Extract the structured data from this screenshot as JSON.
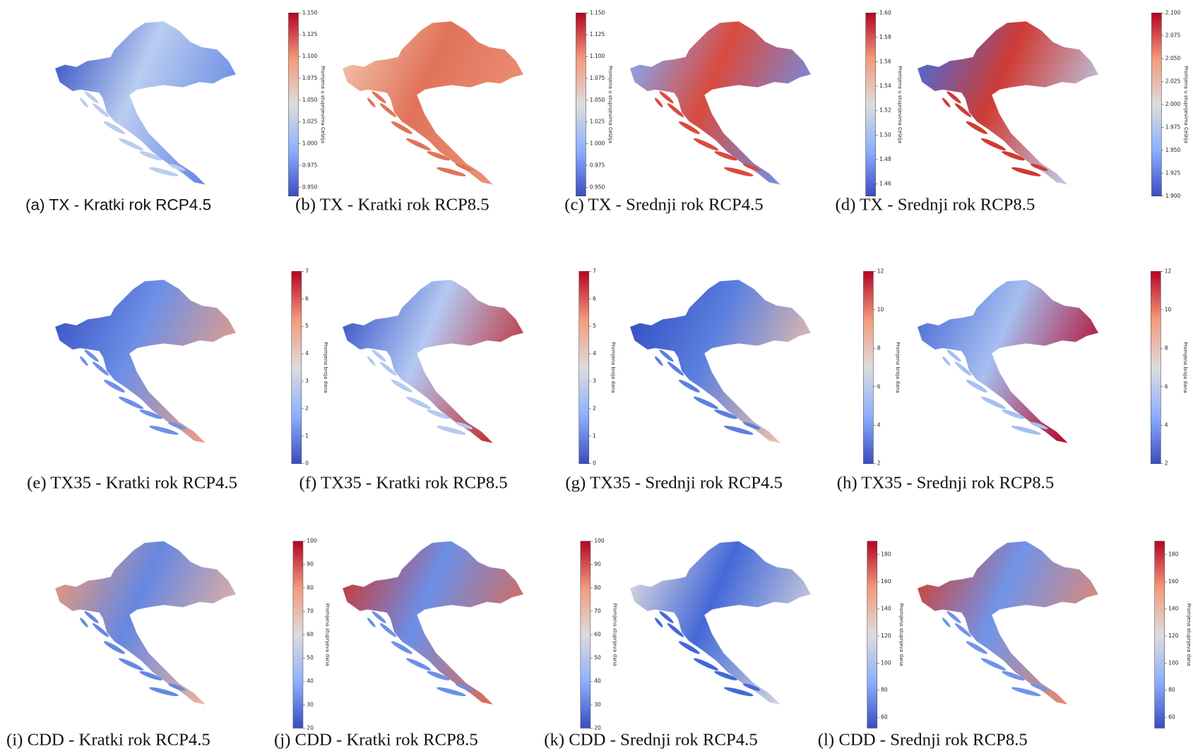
{
  "panels": [
    {
      "caption": "(a) TX - Kratki rok RCP4.5",
      "colorbar": {
        "label": "Promjena u stupnjevima Celzija",
        "lim": [
          0.94,
          1.15
        ],
        "ticks": [
          {
            "value": 0.95,
            "label": "0.950"
          },
          0.975,
          {
            "value": 1.0,
            "label": "1.000"
          },
          1.025,
          {
            "value": 1.05,
            "label": "1.050"
          },
          1.075,
          {
            "value": 1.1,
            "label": "1.100"
          },
          1.125,
          {
            "value": 1.15,
            "label": "1.150"
          }
        ]
      }
    },
    {
      "caption": "(b) TX - Kratki rok RCP8.5",
      "colorbar": {
        "label": "Promjena u stupnjevima Celzija",
        "lim": [
          0.94,
          1.15
        ],
        "ticks": [
          {
            "value": 0.95,
            "label": "0.950"
          },
          0.975,
          {
            "value": 1.0,
            "label": "1.000"
          },
          1.025,
          {
            "value": 1.05,
            "label": "1.050"
          },
          1.075,
          {
            "value": 1.1,
            "label": "1.100"
          },
          1.125,
          {
            "value": 1.15,
            "label": "1.150"
          }
        ]
      }
    },
    {
      "caption": "(c) TX - Srednji rok RCP4.5",
      "colorbar": {
        "label": "Promjena u stupnjevima Celzija",
        "lim": [
          1.45,
          1.6
        ],
        "ticks": [
          1.46,
          1.48,
          {
            "value": 1.5,
            "label": "1.50"
          },
          1.52,
          1.54,
          1.56,
          1.58,
          {
            "value": 1.6,
            "label": "1.60"
          }
        ]
      }
    },
    {
      "caption": "(d) TX - Srednji rok RCP8.5",
      "colorbar": {
        "label": "Promjena u stupnjevima Celzija",
        "lim": [
          1.9,
          2.1
        ],
        "ticks": [
          {
            "value": 1.9,
            "label": "1.900"
          },
          1.925,
          {
            "value": 1.95,
            "label": "1.950"
          },
          1.975,
          {
            "value": 2.0,
            "label": "2.000"
          },
          2.025,
          {
            "value": 2.05,
            "label": "2.050"
          },
          2.075,
          {
            "value": 2.1,
            "label": "2.100"
          }
        ]
      }
    },
    {
      "caption": "(e) TX35 - Kratki rok RCP4.5",
      "colorbar": {
        "label": "Promjena broja dana",
        "lim": [
          0,
          7
        ],
        "ticks": [
          0,
          1,
          2,
          3,
          4,
          5,
          6,
          7
        ]
      }
    },
    {
      "caption": "(f) TX35 - Kratki rok RCP8.5",
      "colorbar": {
        "label": "Promjena broja dana",
        "lim": [
          0,
          7
        ],
        "ticks": [
          0,
          1,
          2,
          3,
          4,
          5,
          6,
          7
        ]
      }
    },
    {
      "caption": "(g) TX35 - Srednji rok RCP4.5",
      "colorbar": {
        "label": "Promjena broja dana",
        "lim": [
          2,
          12
        ],
        "ticks": [
          2,
          4,
          6,
          8,
          10,
          12
        ]
      }
    },
    {
      "caption": "(h) TX35 - Srednji rok RCP8.5",
      "colorbar": {
        "label": "Promjena broja dana",
        "lim": [
          2,
          12
        ],
        "ticks": [
          2,
          4,
          6,
          8,
          10,
          12
        ]
      }
    },
    {
      "caption": "(i) CDD - Kratki rok RCP4.5",
      "colorbar": {
        "label": "Promjena stupnjeva dana",
        "lim": [
          20,
          100
        ],
        "ticks": [
          20,
          30,
          40,
          50,
          60,
          70,
          80,
          90,
          100
        ]
      }
    },
    {
      "caption": "(j) CDD - Kratki rok RCP8.5",
      "colorbar": {
        "label": "Promjena stupnjeva dana",
        "lim": [
          20,
          100
        ],
        "ticks": [
          20,
          30,
          40,
          50,
          60,
          70,
          80,
          90,
          100
        ]
      }
    },
    {
      "caption": "(k) CDD - Srednji rok RCP4.5",
      "colorbar": {
        "label": "Promjena stupnjeva dana",
        "lim": [
          52,
          190
        ],
        "ticks": [
          60,
          80,
          100,
          120,
          140,
          160,
          180
        ]
      }
    },
    {
      "caption": "(l) CDD - Srednji rok RCP8.5",
      "colorbar": {
        "label": "Promjena stupnjeva dana",
        "lim": [
          52,
          190
        ],
        "ticks": [
          60,
          80,
          100,
          120,
          140,
          160,
          180
        ]
      }
    }
  ]
}
